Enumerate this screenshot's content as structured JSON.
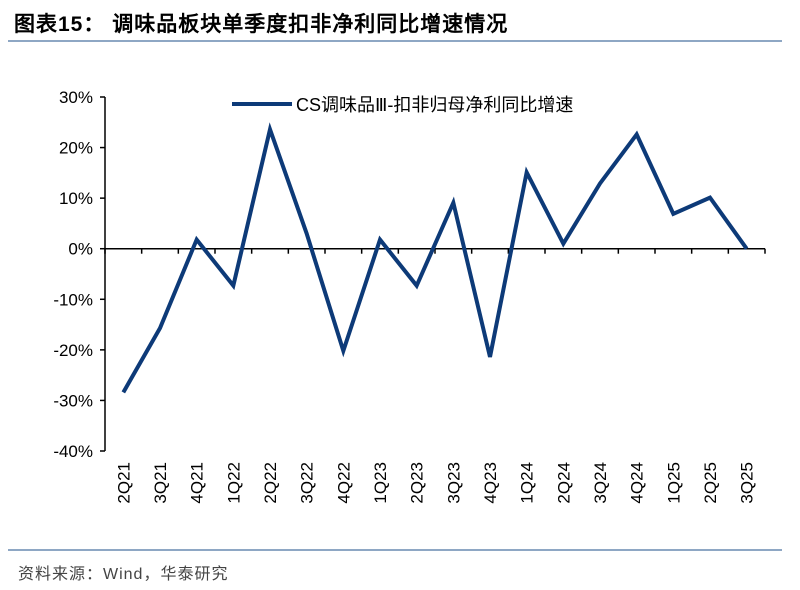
{
  "title": "图表15：  调味品板块单季度扣非净利同比增速情况",
  "source": "资料来源：Wind，华泰研究",
  "colors": {
    "line": "#0d3a78",
    "rule": "#8ea7c4"
  },
  "chart_data": {
    "type": "line",
    "title": "",
    "xlabel": "",
    "ylabel": "",
    "categories": [
      "2Q21",
      "3Q21",
      "4Q21",
      "1Q22",
      "2Q22",
      "3Q22",
      "4Q22",
      "1Q23",
      "2Q23",
      "3Q23",
      "4Q23",
      "1Q24",
      "2Q24",
      "3Q24",
      "4Q24",
      "1Q25",
      "2Q25",
      "3Q25"
    ],
    "series": [
      {
        "name": "CS调味品Ⅲ-扣非归母净利同比增速",
        "values": [
          -28.4,
          -15.7,
          1.8,
          -7.3,
          23.6,
          3.0,
          -20.2,
          1.8,
          -7.3,
          9.1,
          -21.4,
          15.1,
          1.0,
          12.9,
          22.6,
          6.9,
          10.1,
          0.0
        ]
      }
    ],
    "ylim": [
      -40,
      30
    ],
    "yticks": [
      "30%",
      "20%",
      "10%",
      "0%",
      "-10%",
      "-20%",
      "-30%",
      "-40%"
    ],
    "ytick_values": [
      30,
      20,
      10,
      0,
      -10,
      -20,
      -30,
      -40
    ],
    "legend": "top-center",
    "grid": false
  }
}
